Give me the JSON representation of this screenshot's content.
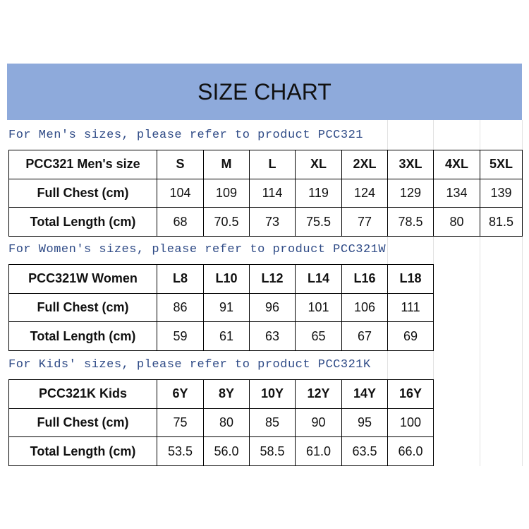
{
  "title": "SIZE CHART",
  "sections": [
    {
      "note": "For Men's sizes, please refer to product PCC321",
      "header": [
        "PCC321 Men's size",
        "S",
        "M",
        "L",
        "XL",
        "2XL",
        "3XL",
        "4XL",
        "5XL"
      ],
      "rows": [
        [
          "Full Chest (cm)",
          "104",
          "109",
          "114",
          "119",
          "124",
          "129",
          "134",
          "139"
        ],
        [
          "Total Length (cm)",
          "68",
          "70.5",
          "73",
          "75.5",
          "77",
          "78.5",
          "80",
          "81.5"
        ]
      ]
    },
    {
      "note": "For Women's sizes, please refer to product PCC321W",
      "header": [
        "PCC321W Women",
        "L8",
        "L10",
        "L12",
        "L14",
        "L16",
        "L18"
      ],
      "rows": [
        [
          "Full Chest (cm)",
          "86",
          "91",
          "96",
          "101",
          "106",
          "111"
        ],
        [
          "Total Length (cm)",
          "59",
          "61",
          "63",
          "65",
          "67",
          "69"
        ]
      ]
    },
    {
      "note": "For Kids' sizes, please refer to product PCC321K",
      "header": [
        "PCC321K Kids",
        "6Y",
        "8Y",
        "10Y",
        "12Y",
        "14Y",
        "16Y"
      ],
      "rows": [
        [
          "Full Chest (cm)",
          "75",
          "80",
          "85",
          "90",
          "95",
          "100"
        ],
        [
          "Total Length (cm)",
          "53.5",
          "56.0",
          "58.5",
          "61.0",
          "63.5",
          "66.0"
        ]
      ]
    }
  ]
}
